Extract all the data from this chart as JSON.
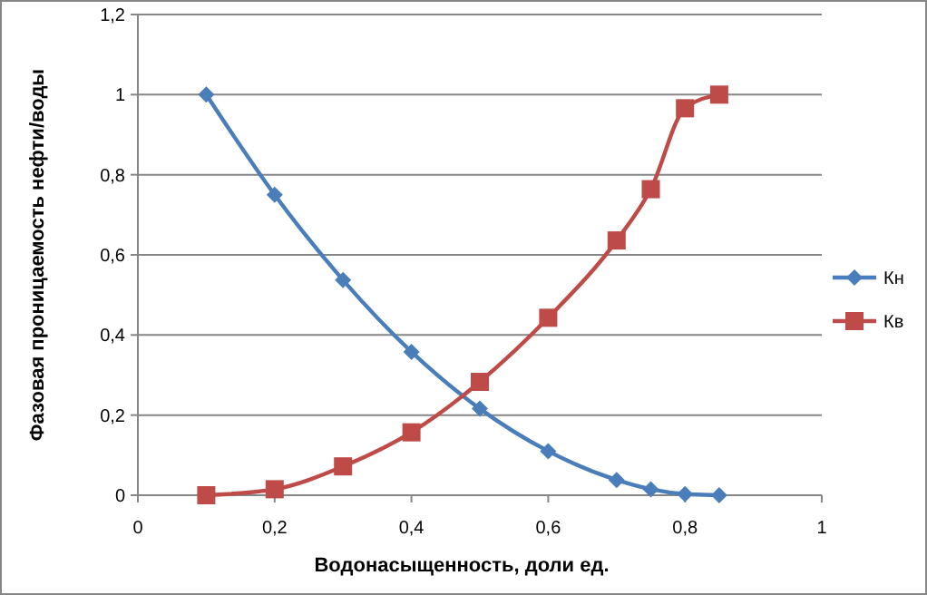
{
  "chart_data": {
    "type": "line",
    "xlabel": "Водонасыщенность, доли ед.",
    "ylabel": "Фазовая проницаемость нефти/воды",
    "x": [
      0.1,
      0.2,
      0.3,
      0.4,
      0.5,
      0.6,
      0.7,
      0.75,
      0.8,
      0.85
    ],
    "series": [
      {
        "name": "Кн",
        "color": "#4a7ebb",
        "marker": "diamond",
        "values": [
          1,
          0.75,
          0.537,
          0.358,
          0.216,
          0.11,
          0.038,
          0.015,
          0.003,
          0
        ]
      },
      {
        "name": "Кв",
        "color": "#be4b48",
        "marker": "square",
        "values": [
          0,
          0.015,
          0.072,
          0.157,
          0.283,
          0.443,
          0.636,
          0.764,
          0.966,
          1
        ]
      }
    ],
    "xlim": [
      0,
      1
    ],
    "xticks": [
      {
        "value": 0,
        "label": "0"
      },
      {
        "value": 0.2,
        "label": "0,2"
      },
      {
        "value": 0.4,
        "label": "0,4"
      },
      {
        "value": 0.6,
        "label": "0,6"
      },
      {
        "value": 0.8,
        "label": "0,8"
      },
      {
        "value": 1,
        "label": "1"
      }
    ],
    "ylim": [
      0,
      1.2
    ],
    "yticks": [
      {
        "value": 0,
        "label": "0"
      },
      {
        "value": 0.2,
        "label": "0,2"
      },
      {
        "value": 0.4,
        "label": "0,4"
      },
      {
        "value": 0.6,
        "label": "0,6"
      },
      {
        "value": 0.8,
        "label": "0,8"
      },
      {
        "value": 1,
        "label": "1"
      },
      {
        "value": 1.2,
        "label": "1,2"
      }
    ],
    "grid": "y",
    "legend": "right",
    "line_style": "solid"
  }
}
